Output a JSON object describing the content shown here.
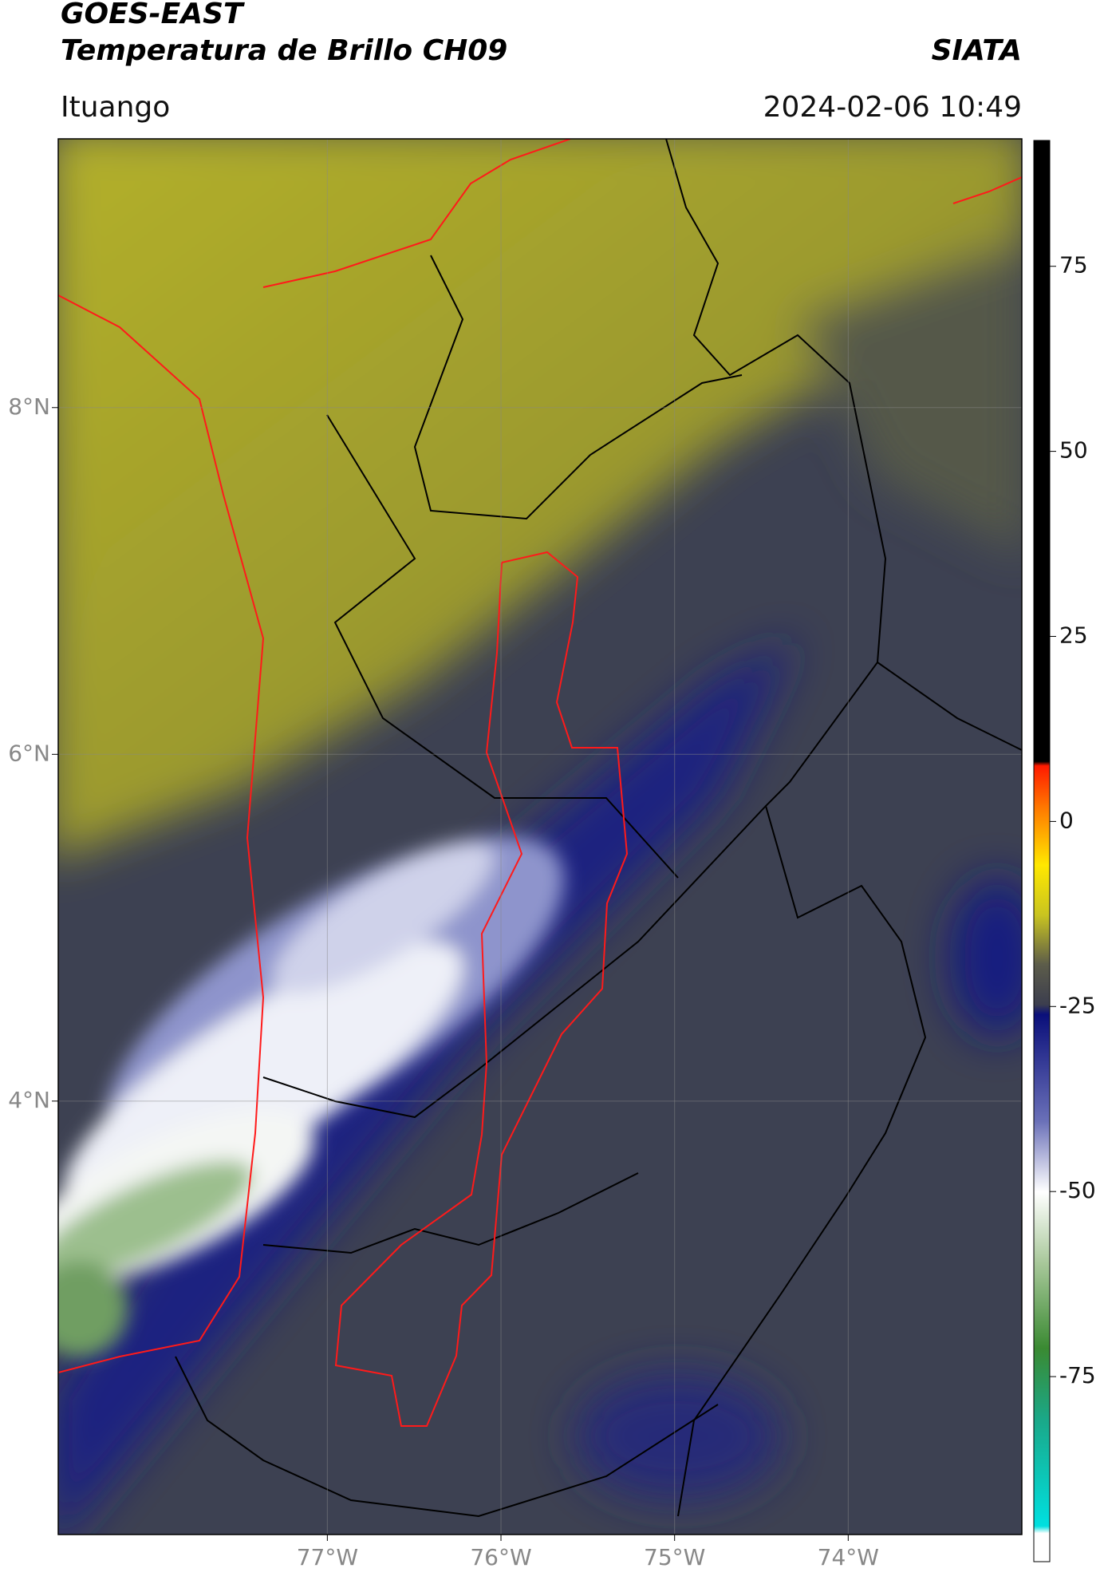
{
  "header": {
    "title": "GOES-EAST",
    "subtitle": "Temperatura de Brillo CH09",
    "brand": "SIATA",
    "location": "Ituango",
    "datetime": "2024-02-06 10:49"
  },
  "map": {
    "lon_lim": [
      -78.55,
      -73.0
    ],
    "lat_lim": [
      1.5,
      9.55
    ],
    "lat_ticks": [
      {
        "value": 8,
        "label": "8°N"
      },
      {
        "value": 6,
        "label": "6°N"
      },
      {
        "value": 4,
        "label": "4°N"
      }
    ],
    "lon_ticks": [
      {
        "value": -77,
        "label": "77°W"
      },
      {
        "value": -76,
        "label": "76°W"
      },
      {
        "value": -75,
        "label": "75°W"
      },
      {
        "value": -74,
        "label": "74°W"
      }
    ],
    "grid": true
  },
  "colorbar": {
    "lim": [
      -100,
      92
    ],
    "ticks": [
      75,
      50,
      25,
      0,
      -25,
      -50,
      -75
    ]
  }
}
